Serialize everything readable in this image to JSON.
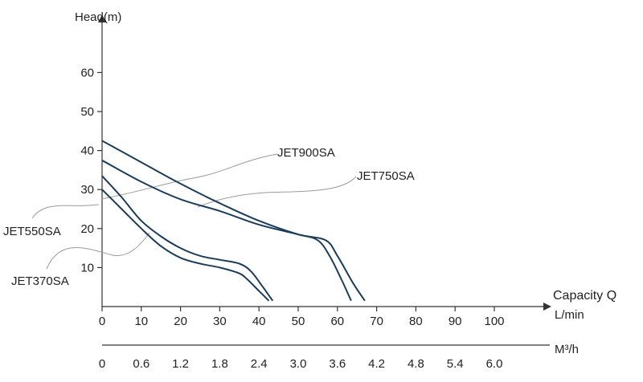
{
  "chart_data": {
    "type": "line",
    "title": "",
    "ylabel": "Head(m)",
    "xlabel": "Capacity Q",
    "x_unit_primary": "L/min",
    "x_unit_secondary": "M³/h",
    "xlim": [
      0,
      100
    ],
    "ylim": [
      0,
      60
    ],
    "yticks": [
      "10",
      "20",
      "30",
      "40",
      "50",
      "60"
    ],
    "xticks_primary": [
      "0",
      "10",
      "20",
      "30",
      "40",
      "50",
      "60",
      "70",
      "80",
      "90",
      "100"
    ],
    "xticks_secondary": [
      "0",
      "0.6",
      "1.2",
      "1.8",
      "2.4",
      "3.0",
      "3.6",
      "4.2",
      "4.8",
      "5.4",
      "6.0"
    ],
    "grid": false,
    "series": [
      {
        "name": "JET900SA",
        "x": [
          0,
          10,
          20,
          30,
          40,
          50,
          57,
          60,
          64,
          67
        ],
        "y": [
          42.5,
          37,
          31.5,
          26.5,
          22,
          18.5,
          17,
          13,
          6,
          1.5
        ]
      },
      {
        "name": "JET750SA",
        "x": [
          0,
          10,
          20,
          30,
          40,
          50,
          55,
          58,
          61,
          63.5
        ],
        "y": [
          37.5,
          32,
          27.5,
          24.5,
          21,
          18.5,
          17,
          13,
          7,
          1.5
        ]
      },
      {
        "name": "JET550SA",
        "x": [
          0,
          5,
          10,
          15,
          20,
          25,
          30,
          35,
          38,
          41,
          43.5
        ],
        "y": [
          33.5,
          28,
          22,
          18,
          15,
          13,
          12,
          11,
          9,
          5,
          1.5
        ]
      },
      {
        "name": "JET370SA",
        "x": [
          0,
          5,
          10,
          15,
          20,
          25,
          30,
          35,
          37,
          40,
          42.5
        ],
        "y": [
          30,
          25,
          20,
          15.5,
          12.5,
          11,
          10,
          8.5,
          7,
          4,
          1.5
        ]
      }
    ]
  }
}
